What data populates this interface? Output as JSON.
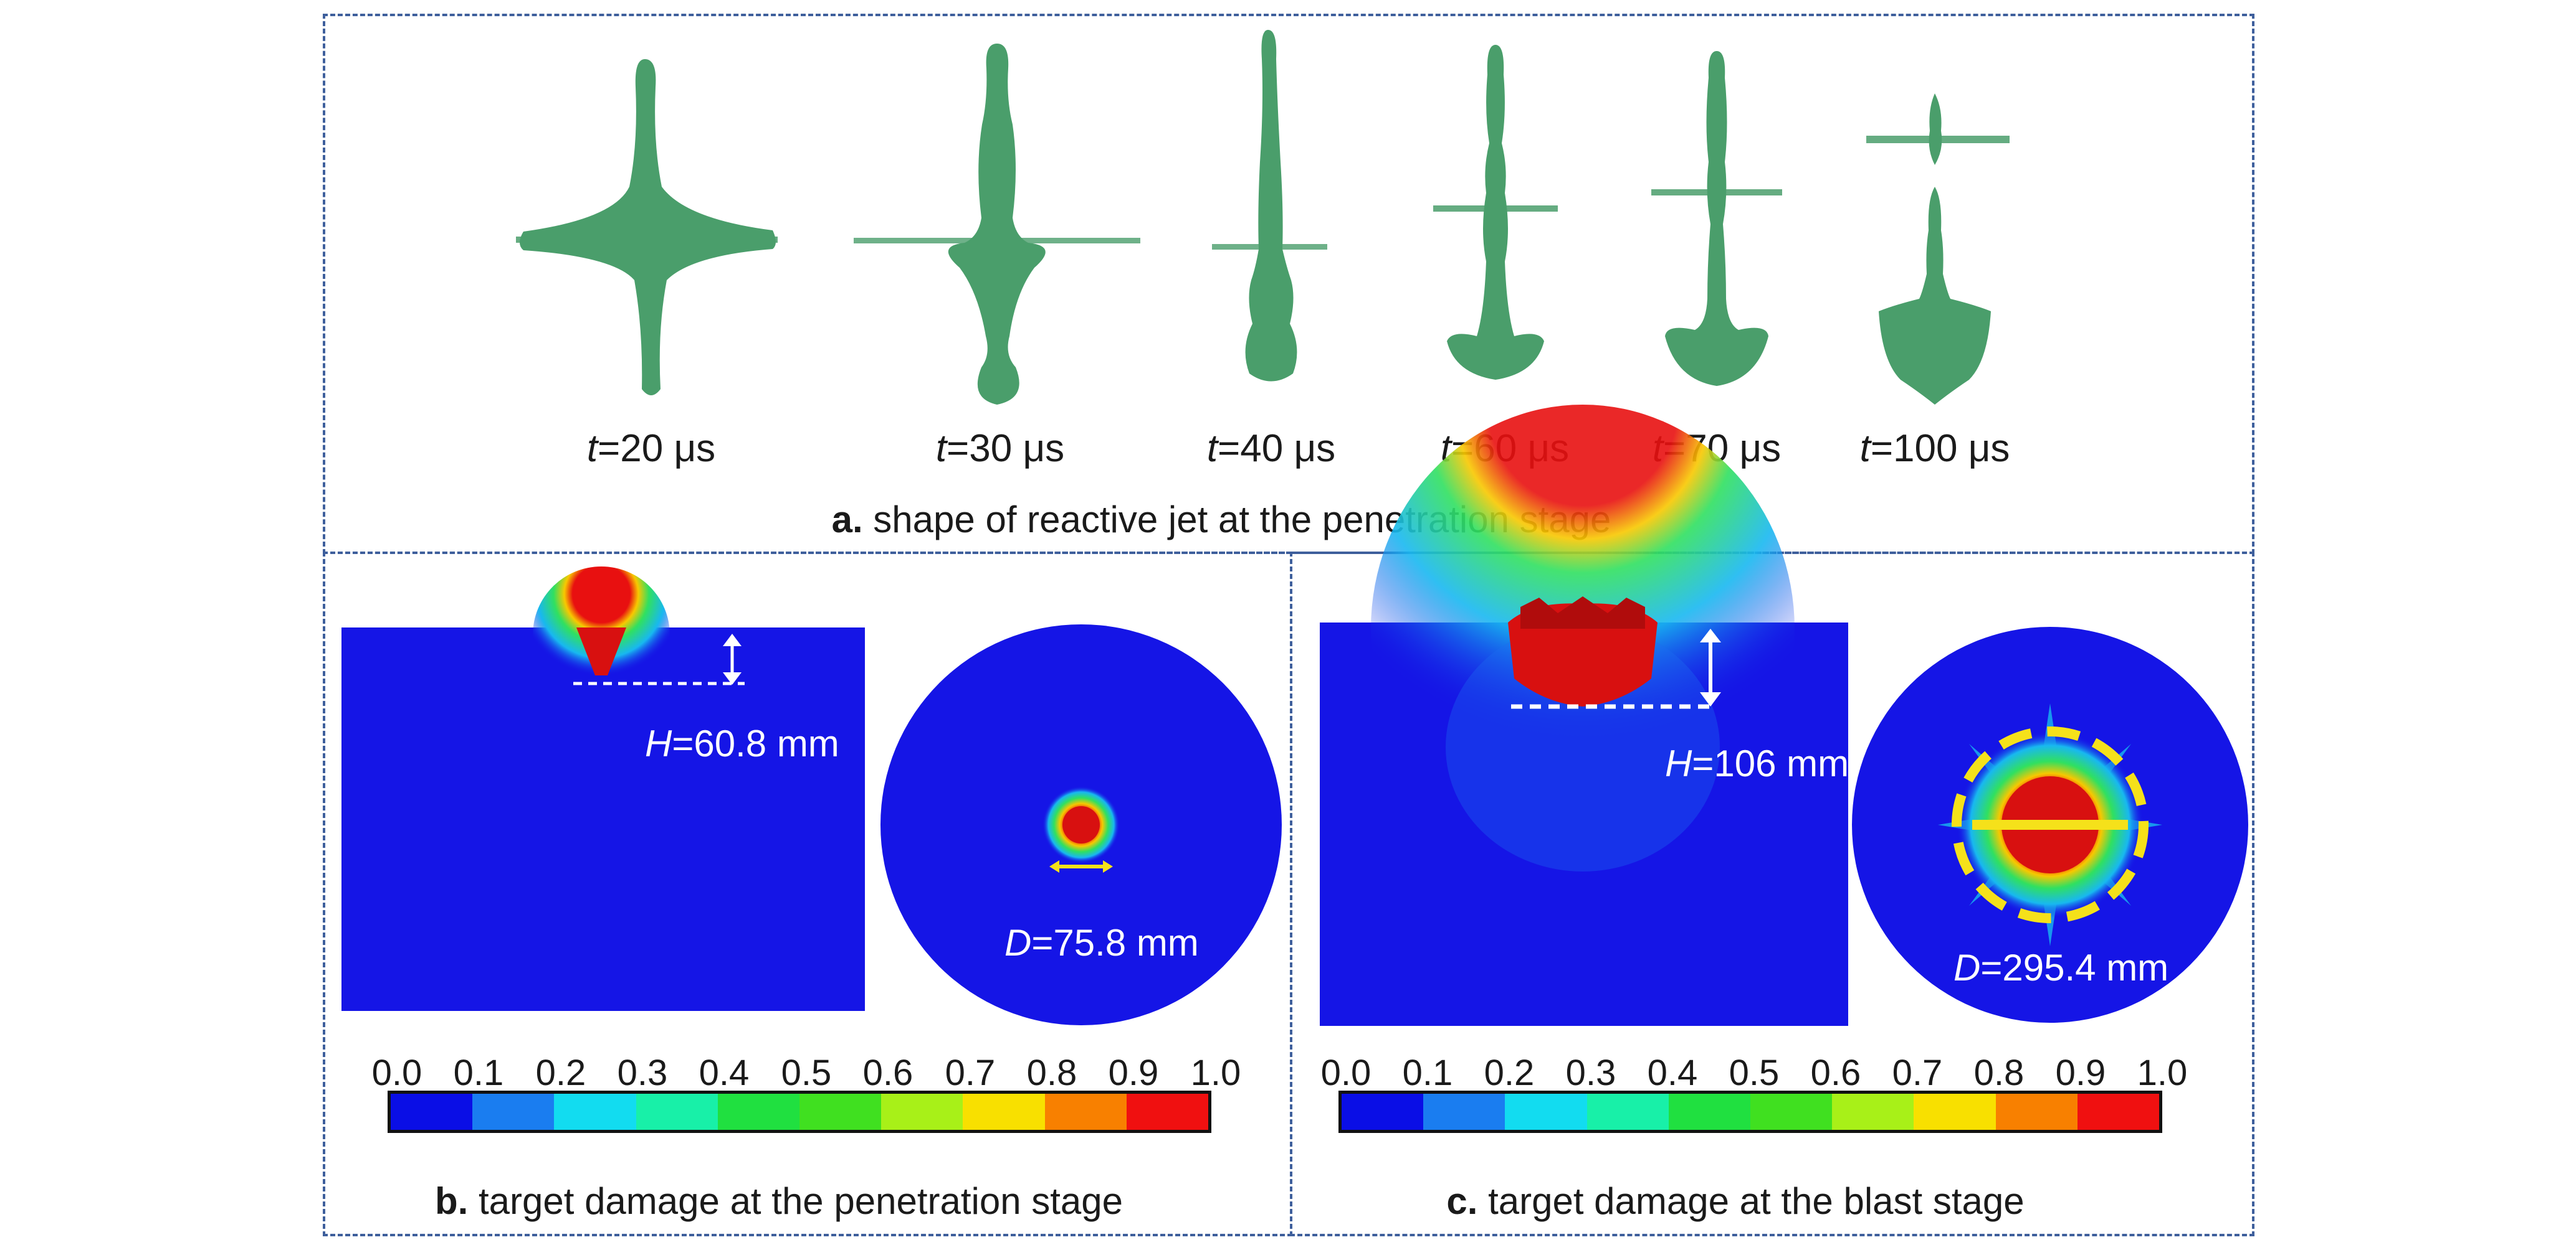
{
  "panel_a": {
    "caption_letter": "a.",
    "caption_text": "shape of reactive jet at the penetration stage",
    "frames": [
      {
        "t_var": "t",
        "t_rest": "=20 μs"
      },
      {
        "t_var": "t",
        "t_rest": "=30 μs"
      },
      {
        "t_var": "t",
        "t_rest": "=40 μs"
      },
      {
        "t_var": "t",
        "t_rest": "=60 μs"
      },
      {
        "t_var": "t",
        "t_rest": "=70 μs"
      },
      {
        "t_var": "t",
        "t_rest": "=100 μs"
      }
    ],
    "jet_color": "#4a9e6b"
  },
  "panel_b": {
    "caption_letter": "b.",
    "caption_text": "target damage at the penetration stage",
    "h_var": "H",
    "h_rest": "=60.8 mm",
    "d_var": "D",
    "d_rest": "=75.8 mm",
    "ticks": [
      "0.0",
      "0.1",
      "0.2",
      "0.3",
      "0.4",
      "0.5",
      "0.6",
      "0.7",
      "0.8",
      "0.9",
      "1.0"
    ]
  },
  "panel_c": {
    "caption_letter": "c.",
    "caption_text": "target damage at the blast stage",
    "h_var": "H",
    "h_rest": "=106 mm",
    "d_var": "D",
    "d_rest": "=295.4 mm",
    "ticks": [
      "0.0",
      "0.1",
      "0.2",
      "0.3",
      "0.4",
      "0.5",
      "0.6",
      "0.7",
      "0.8",
      "0.9",
      "1.0"
    ]
  },
  "colorbar_colors": [
    "#0a0ee6",
    "#1a7df0",
    "#12dcf0",
    "#18f0a8",
    "#20e040",
    "#40e020",
    "#a8f018",
    "#f8e000",
    "#f88000",
    "#f01010"
  ],
  "colors": {
    "frame_border": "#3e5f9c",
    "target_blue": "#1515e6",
    "annotation_white": "#ffffff",
    "dashed_circle": "#f5e11a"
  }
}
